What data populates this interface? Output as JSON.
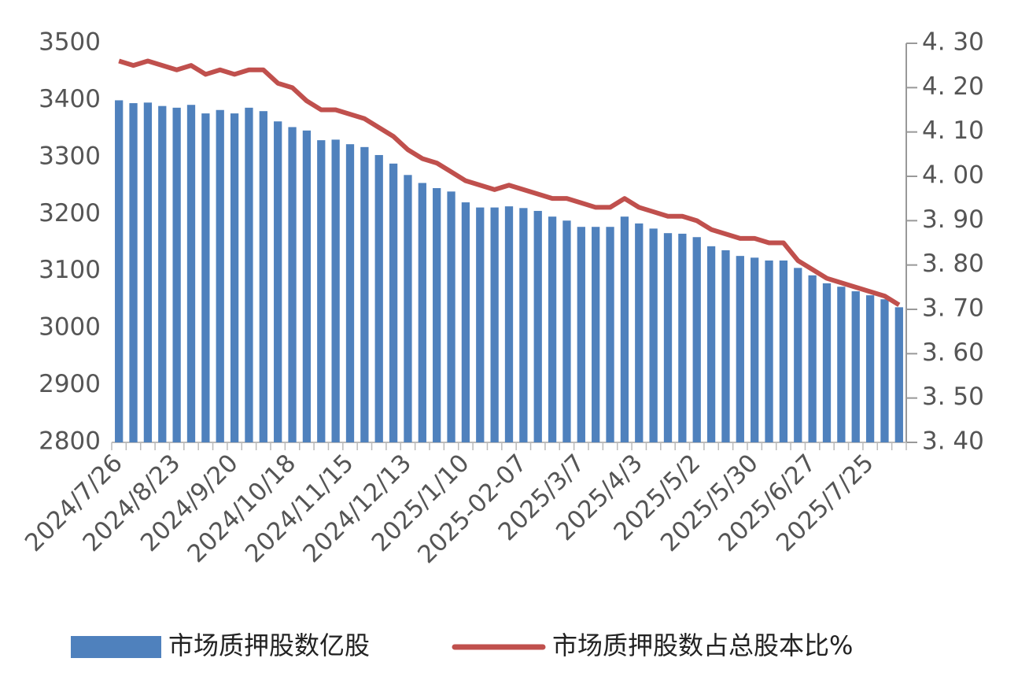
{
  "chart_data": {
    "type": "combo",
    "categories": [
      "2024/7/26",
      null,
      null,
      null,
      "2024/8/23",
      null,
      null,
      null,
      "2024/9/20",
      null,
      null,
      null,
      "2024/10/18",
      null,
      null,
      null,
      "2024/11/15",
      null,
      null,
      null,
      "2024/12/13",
      null,
      null,
      null,
      "2025/1/10",
      null,
      null,
      null,
      "2025-02-07",
      null,
      null,
      null,
      "2025/3/7",
      null,
      null,
      null,
      "2025/4/3",
      null,
      null,
      null,
      "2025/5/2",
      null,
      null,
      null,
      "2025/5/30",
      null,
      null,
      null,
      "2025/6/27",
      null,
      null,
      null,
      "2025/7/25",
      null,
      null
    ],
    "series": [
      {
        "name": "市场质押股数亿股",
        "type": "bar",
        "color": "#4f81bd",
        "values": [
          3400,
          3395,
          3396,
          3390,
          3387,
          3392,
          3377,
          3383,
          3377,
          3387,
          3381,
          3363,
          3353,
          3347,
          3330,
          3331,
          3323,
          3318,
          3304,
          3289,
          3269,
          3255,
          3246,
          3240,
          3221,
          3212,
          3212,
          3214,
          3211,
          3206,
          3196,
          3189,
          3178,
          3178,
          3178,
          3196,
          3184,
          3175,
          3167,
          3166,
          3160,
          3144,
          3137,
          3127,
          3124,
          3119,
          3119,
          3106,
          3093,
          3079,
          3073,
          3065,
          3058,
          3051,
          3037
        ]
      },
      {
        "name": "市场质押股数占总股本比%",
        "type": "line",
        "axis": "y2",
        "color": "#c0504d",
        "values": [
          4.26,
          4.25,
          4.26,
          4.25,
          4.24,
          4.25,
          4.23,
          4.24,
          4.23,
          4.24,
          4.24,
          4.21,
          4.2,
          4.17,
          4.15,
          4.15,
          4.14,
          4.13,
          4.11,
          4.09,
          4.06,
          4.04,
          4.03,
          4.01,
          3.99,
          3.98,
          3.97,
          3.98,
          3.97,
          3.96,
          3.95,
          3.95,
          3.94,
          3.93,
          3.93,
          3.95,
          3.93,
          3.92,
          3.91,
          3.91,
          3.9,
          3.88,
          3.87,
          3.86,
          3.86,
          3.85,
          3.85,
          3.81,
          3.79,
          3.77,
          3.76,
          3.75,
          3.74,
          3.73,
          3.71
        ]
      }
    ],
    "ylim": [
      2800,
      3500
    ],
    "yticks": [
      2800,
      2900,
      3000,
      3100,
      3200,
      3300,
      3400,
      3500
    ],
    "y2lim": [
      3.4,
      4.3
    ],
    "y2ticks": [
      {
        "value": 3.4,
        "label": "3. 40"
      },
      {
        "value": 3.5,
        "label": "3. 50"
      },
      {
        "value": 3.6,
        "label": "3. 60"
      },
      {
        "value": 3.7,
        "label": "3. 70"
      },
      {
        "value": 3.8,
        "label": "3. 80"
      },
      {
        "value": 3.9,
        "label": "3. 90"
      },
      {
        "value": 4.0,
        "label": "4. 00"
      },
      {
        "value": 4.1,
        "label": "4. 10"
      },
      {
        "value": 4.2,
        "label": "4. 20"
      },
      {
        "value": 4.3,
        "label": "4. 30"
      }
    ],
    "legend": "bottom"
  }
}
